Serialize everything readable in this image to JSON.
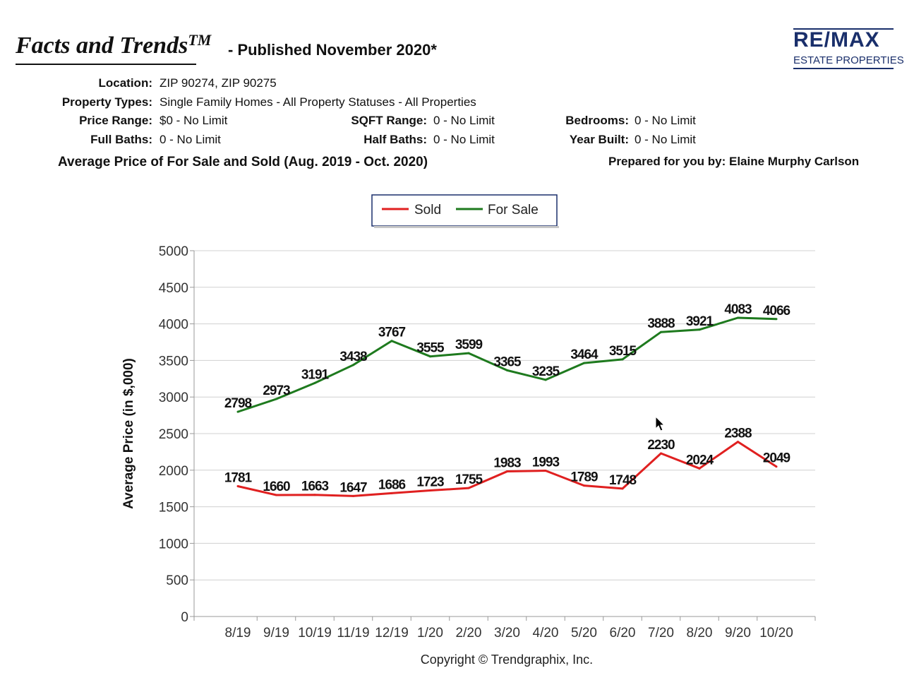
{
  "header": {
    "title": "Facts and Trends",
    "title_sup": "TM",
    "subtitle": "- Published November 2020*"
  },
  "logo": {
    "brand": "RE/MAX",
    "tagline": "ESTATE PROPERTIES",
    "color": "#1a2f6b"
  },
  "filters": {
    "location": {
      "label": "Location:",
      "value": "ZIP 90274, ZIP 90275"
    },
    "property_types": {
      "label": "Property Types:",
      "value": "Single Family Homes - All Property Statuses - All Properties"
    },
    "price_range": {
      "label": "Price Range:",
      "value": "$0 - No Limit"
    },
    "sqft_range": {
      "label": "SQFT Range:",
      "value": "0 - No Limit"
    },
    "bedrooms": {
      "label": "Bedrooms:",
      "value": "0 - No Limit"
    },
    "full_baths": {
      "label": "Full Baths:",
      "value": "0 - No Limit"
    },
    "half_baths": {
      "label": "Half Baths:",
      "value": "0 - No Limit"
    },
    "year_built": {
      "label": "Year Built:",
      "value": "0 - No Limit"
    }
  },
  "chart_heading": "Average Price of For Sale and Sold (Aug. 2019 - Oct. 2020)",
  "prepared_by": "Prepared for you by: Elaine Murphy Carlson",
  "copyright": "Copyright © Trendgraphix, Inc.",
  "chart_data": {
    "type": "line",
    "title": "Average Price of For Sale and Sold (Aug. 2019 - Oct. 2020)",
    "ylabel": "Average Price (in $,000)",
    "xlabel": "",
    "ylim": [
      0,
      5000
    ],
    "yticks": [
      0,
      500,
      1000,
      1500,
      2000,
      2500,
      3000,
      3500,
      4000,
      4500,
      5000
    ],
    "grid": true,
    "legend_position": "top-center",
    "categories": [
      "8/19",
      "9/19",
      "10/19",
      "11/19",
      "12/19",
      "1/20",
      "2/20",
      "3/20",
      "4/20",
      "5/20",
      "6/20",
      "7/20",
      "8/20",
      "9/20",
      "10/20"
    ],
    "series": [
      {
        "name": "Sold",
        "color": "#e02020",
        "values": [
          1781,
          1660,
          1663,
          1647,
          1686,
          1723,
          1755,
          1983,
          1993,
          1789,
          1748,
          2230,
          2024,
          2388,
          2049
        ]
      },
      {
        "name": "For Sale",
        "color": "#1e7a1e",
        "values": [
          2798,
          2973,
          3191,
          3438,
          3767,
          3555,
          3599,
          3365,
          3235,
          3464,
          3515,
          3888,
          3921,
          4083,
          4066
        ]
      }
    ]
  }
}
